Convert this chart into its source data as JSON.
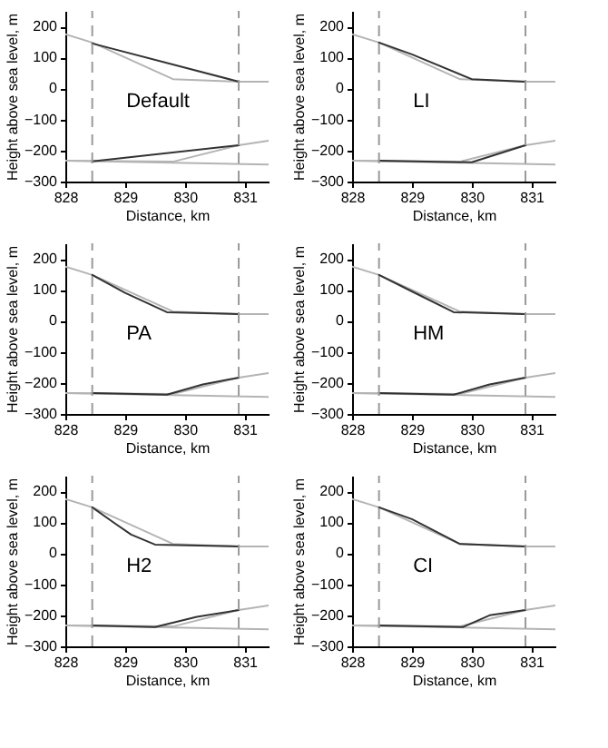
{
  "chart_data": [
    {
      "type": "line",
      "xlabel": "Distance, km",
      "ylabel": "Height above sea level, m",
      "annotations": [
        "Default"
      ],
      "xlim": [
        828,
        831.4
      ],
      "xticks": [
        828,
        829,
        830,
        831
      ],
      "ylim": [
        -300,
        250
      ],
      "yticks": [
        -300,
        -200,
        -100,
        0,
        100,
        200
      ],
      "ref_lines": [
        {
          "axis": "x",
          "value": 828.45,
          "color": "#999999",
          "line_style": "dashed"
        },
        {
          "axis": "x",
          "value": 830.9,
          "color": "#999999",
          "line_style": "dashed"
        }
      ],
      "series": [
        {
          "color": "#b4b4b4",
          "x": [
            828,
            828.45,
            829.8,
            830.9,
            831.4
          ],
          "values": [
            175,
            148,
            30,
            22,
            22
          ]
        },
        {
          "color": "#b4b4b4",
          "x": [
            828,
            829.8,
            830.9,
            831.4
          ],
          "values": [
            -233,
            -236,
            -183,
            -168
          ]
        },
        {
          "color": "#b4b4b4",
          "x": [
            828,
            831.4
          ],
          "values": [
            -233,
            -245
          ]
        },
        {
          "color": "#333333",
          "x": [
            828.45,
            830.9
          ],
          "values": [
            145,
            22
          ]
        },
        {
          "color": "#333333",
          "x": [
            828.45,
            830.9
          ],
          "values": [
            -235,
            -183
          ]
        }
      ]
    },
    {
      "type": "line",
      "xlabel": "Distance, km",
      "ylabel": "Height above sea level, m",
      "annotations": [
        "LI"
      ],
      "xlim": [
        828,
        831.4
      ],
      "xticks": [
        828,
        829,
        830,
        831
      ],
      "ylim": [
        -300,
        250
      ],
      "yticks": [
        -300,
        -200,
        -100,
        0,
        100,
        200
      ],
      "ref_lines": [
        {
          "axis": "x",
          "value": 828.45,
          "color": "#999999",
          "line_style": "dashed"
        },
        {
          "axis": "x",
          "value": 830.9,
          "color": "#999999",
          "line_style": "dashed"
        }
      ],
      "series": [
        {
          "color": "#b4b4b4",
          "x": [
            828,
            828.45,
            829.8,
            830.9,
            831.4
          ],
          "values": [
            175,
            148,
            30,
            22,
            22
          ]
        },
        {
          "color": "#b4b4b4",
          "x": [
            828,
            829.8,
            830.9,
            831.4
          ],
          "values": [
            -233,
            -236,
            -183,
            -168
          ]
        },
        {
          "color": "#b4b4b4",
          "x": [
            828,
            831.4
          ],
          "values": [
            -233,
            -245
          ]
        },
        {
          "color": "#333333",
          "x": [
            828.45,
            829,
            830,
            830.9
          ],
          "values": [
            148,
            110,
            30,
            22
          ]
        },
        {
          "color": "#333333",
          "x": [
            828.45,
            830,
            830.9
          ],
          "values": [
            -233,
            -238,
            -183
          ]
        }
      ]
    },
    {
      "type": "line",
      "xlabel": "Distance, km",
      "ylabel": "Height above sea level, m",
      "annotations": [
        "PA"
      ],
      "xlim": [
        828,
        831.4
      ],
      "xticks": [
        828,
        829,
        830,
        831
      ],
      "ylim": [
        -300,
        250
      ],
      "yticks": [
        -300,
        -200,
        -100,
        0,
        100,
        200
      ],
      "ref_lines": [
        {
          "axis": "x",
          "value": 828.45,
          "color": "#999999",
          "line_style": "dashed"
        },
        {
          "axis": "x",
          "value": 830.9,
          "color": "#999999",
          "line_style": "dashed"
        }
      ],
      "series": [
        {
          "color": "#b4b4b4",
          "x": [
            828,
            828.45,
            829.8,
            830.9,
            831.4
          ],
          "values": [
            175,
            148,
            30,
            22,
            22
          ]
        },
        {
          "color": "#b4b4b4",
          "x": [
            828,
            829.8,
            830.9,
            831.4
          ],
          "values": [
            -233,
            -236,
            -183,
            -168
          ]
        },
        {
          "color": "#b4b4b4",
          "x": [
            828,
            831.4
          ],
          "values": [
            -233,
            -245
          ]
        },
        {
          "color": "#333333",
          "x": [
            828.45,
            829,
            829.7,
            830.9
          ],
          "values": [
            148,
            90,
            28,
            22
          ]
        },
        {
          "color": "#333333",
          "x": [
            828.45,
            829.7,
            830.3,
            830.9
          ],
          "values": [
            -233,
            -238,
            -205,
            -183
          ]
        }
      ]
    },
    {
      "type": "line",
      "xlabel": "Distance, km",
      "ylabel": "Height above sea level, m",
      "annotations": [
        "HM"
      ],
      "xlim": [
        828,
        831.4
      ],
      "xticks": [
        828,
        829,
        830,
        831
      ],
      "ylim": [
        -300,
        250
      ],
      "yticks": [
        -300,
        -200,
        -100,
        0,
        100,
        200
      ],
      "ref_lines": [
        {
          "axis": "x",
          "value": 828.45,
          "color": "#999999",
          "line_style": "dashed"
        },
        {
          "axis": "x",
          "value": 830.9,
          "color": "#999999",
          "line_style": "dashed"
        }
      ],
      "series": [
        {
          "color": "#b4b4b4",
          "x": [
            828,
            828.45,
            829.8,
            830.9,
            831.4
          ],
          "values": [
            175,
            148,
            30,
            22,
            22
          ]
        },
        {
          "color": "#b4b4b4",
          "x": [
            828,
            829.8,
            830.9,
            831.4
          ],
          "values": [
            -233,
            -236,
            -183,
            -168
          ]
        },
        {
          "color": "#b4b4b4",
          "x": [
            828,
            831.4
          ],
          "values": [
            -233,
            -245
          ]
        },
        {
          "color": "#333333",
          "x": [
            828.45,
            829,
            829.7,
            830.9
          ],
          "values": [
            148,
            95,
            28,
            22
          ]
        },
        {
          "color": "#333333",
          "x": [
            828.45,
            829.7,
            830.3,
            830.9
          ],
          "values": [
            -233,
            -238,
            -205,
            -183
          ]
        }
      ]
    },
    {
      "type": "line",
      "xlabel": "Distance, km",
      "ylabel": "Height above sea level, m",
      "annotations": [
        "H2"
      ],
      "xlim": [
        828,
        831.4
      ],
      "xticks": [
        828,
        829,
        830,
        831
      ],
      "ylim": [
        -300,
        250
      ],
      "yticks": [
        -300,
        -200,
        -100,
        0,
        100,
        200
      ],
      "ref_lines": [
        {
          "axis": "x",
          "value": 828.45,
          "color": "#999999",
          "line_style": "dashed"
        },
        {
          "axis": "x",
          "value": 830.9,
          "color": "#999999",
          "line_style": "dashed"
        }
      ],
      "series": [
        {
          "color": "#b4b4b4",
          "x": [
            828,
            828.45,
            829.8,
            830.9,
            831.4
          ],
          "values": [
            175,
            148,
            30,
            22,
            22
          ]
        },
        {
          "color": "#b4b4b4",
          "x": [
            828,
            829.8,
            830.9,
            831.4
          ],
          "values": [
            -233,
            -236,
            -183,
            -168
          ]
        },
        {
          "color": "#b4b4b4",
          "x": [
            828,
            831.4
          ],
          "values": [
            -233,
            -245
          ]
        },
        {
          "color": "#333333",
          "x": [
            828.45,
            828.8,
            829.1,
            829.5,
            830.9
          ],
          "values": [
            148,
            100,
            60,
            28,
            22
          ]
        },
        {
          "color": "#333333",
          "x": [
            828.45,
            829.5,
            830.2,
            830.9
          ],
          "values": [
            -233,
            -238,
            -205,
            -183
          ]
        }
      ]
    },
    {
      "type": "line",
      "xlabel": "Distance, km",
      "ylabel": "Height above sea level, m",
      "annotations": [
        "CI"
      ],
      "xlim": [
        828,
        831.4
      ],
      "xticks": [
        828,
        829,
        830,
        831
      ],
      "ylim": [
        -300,
        250
      ],
      "yticks": [
        -300,
        -200,
        -100,
        0,
        100,
        200
      ],
      "ref_lines": [
        {
          "axis": "x",
          "value": 828.45,
          "color": "#999999",
          "line_style": "dashed"
        },
        {
          "axis": "x",
          "value": 830.9,
          "color": "#999999",
          "line_style": "dashed"
        }
      ],
      "series": [
        {
          "color": "#b4b4b4",
          "x": [
            828,
            828.45,
            829.8,
            830.9,
            831.4
          ],
          "values": [
            175,
            148,
            30,
            22,
            22
          ]
        },
        {
          "color": "#b4b4b4",
          "x": [
            828,
            829.8,
            830.9,
            831.4
          ],
          "values": [
            -233,
            -236,
            -183,
            -168
          ]
        },
        {
          "color": "#b4b4b4",
          "x": [
            828,
            831.4
          ],
          "values": [
            -233,
            -245
          ]
        },
        {
          "color": "#333333",
          "x": [
            828.45,
            829,
            829.8,
            830.9
          ],
          "values": [
            148,
            110,
            30,
            22
          ]
        },
        {
          "color": "#333333",
          "x": [
            828.45,
            829.85,
            830.3,
            830.9
          ],
          "values": [
            -233,
            -238,
            -200,
            -183
          ]
        }
      ]
    }
  ]
}
